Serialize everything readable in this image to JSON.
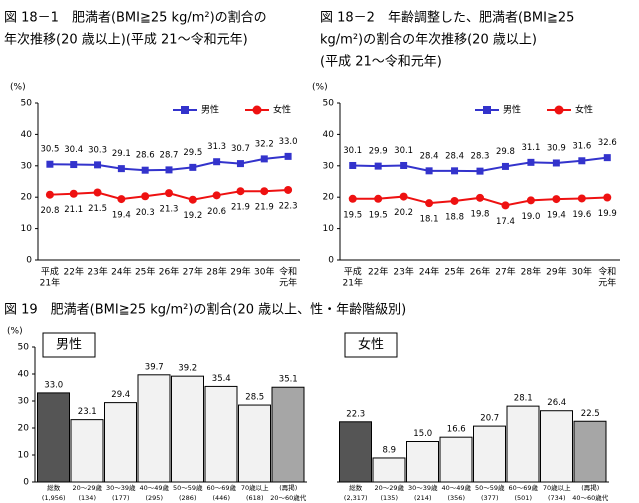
{
  "chart_data": [
    {
      "type": "line",
      "title": [
        "図 18－1　肥満者(BMI≧25 kg/m²)の割合の",
        "年次推移(20 歳以上)(平成 21～令和元年)"
      ],
      "y_label": "(%)",
      "categories": [
        [
          "平成",
          "21年"
        ],
        [
          "22年"
        ],
        [
          "23年"
        ],
        [
          "24年"
        ],
        [
          "25年"
        ],
        [
          "26年"
        ],
        [
          "27年"
        ],
        [
          "28年"
        ],
        [
          "29年"
        ],
        [
          "30年"
        ],
        [
          "令和",
          "元年"
        ]
      ],
      "series": [
        {
          "name": "男性",
          "color": "#3333cc",
          "marker": "square",
          "values": [
            30.5,
            30.4,
            30.3,
            29.1,
            28.6,
            28.7,
            29.5,
            31.3,
            30.7,
            32.2,
            33.0
          ],
          "value_labels": [
            "30.5",
            "30.4",
            "30.3",
            "29.1",
            "28.6",
            "28.7",
            "29.5",
            "31.3",
            "30.7",
            "32.2",
            "33.0"
          ]
        },
        {
          "name": "女性",
          "color": "#ee1111",
          "marker": "circle",
          "values": [
            20.8,
            21.1,
            21.5,
            19.4,
            20.3,
            21.3,
            19.2,
            20.6,
            21.9,
            21.9,
            22.3
          ]
        }
      ],
      "ylim": [
        0,
        50
      ],
      "yticks": [
        0,
        10,
        20,
        30,
        40,
        50
      ]
    },
    {
      "type": "line",
      "title": [
        "図 18－2　年齢調整した、肥満者(BMI≧25",
        "kg/m²)の割合の年次推移(20 歳以上)",
        "(平成 21～令和元年)"
      ],
      "y_label": "(%)",
      "categories": [
        [
          "平成",
          "21年"
        ],
        [
          "22年"
        ],
        [
          "23年"
        ],
        [
          "24年"
        ],
        [
          "25年"
        ],
        [
          "26年"
        ],
        [
          "27年"
        ],
        [
          "28年"
        ],
        [
          "29年"
        ],
        [
          "30年"
        ],
        [
          "令和",
          "元年"
        ]
      ],
      "series": [
        {
          "name": "男性",
          "color": "#3333cc",
          "marker": "square",
          "values": [
            30.1,
            29.9,
            30.1,
            28.4,
            28.4,
            28.3,
            29.8,
            31.1,
            30.9,
            31.6,
            32.6
          ]
        },
        {
          "name": "女性",
          "color": "#ee1111",
          "marker": "circle",
          "values": [
            19.5,
            19.5,
            20.2,
            18.1,
            18.8,
            19.8,
            17.4,
            19.0,
            19.4,
            19.6,
            19.9
          ],
          "value_labels": [
            "19.5",
            "19.5",
            "20.2",
            "18.1",
            "18.8",
            "19.8",
            "17.4",
            "19.0",
            "19.4",
            "19.6",
            "19.9"
          ]
        }
      ],
      "ylim": [
        0,
        50
      ],
      "yticks": [
        0,
        10,
        20,
        30,
        40,
        50
      ]
    },
    {
      "type": "bar",
      "title": [
        "図 19　肥満者(BMI≧25 kg/m²)の割合(20 歳以上、性・年齢階級別)"
      ],
      "y_label": "(%)",
      "ylim": [
        0,
        50
      ],
      "yticks": [
        0,
        10,
        20,
        30,
        40,
        50
      ],
      "panels": [
        {
          "label": "男性",
          "categories": [
            [
              "総数",
              "(1,956)"
            ],
            [
              "20～29歳",
              "(134)"
            ],
            [
              "30～39歳",
              "(177)"
            ],
            [
              "40～49歳",
              "(295)"
            ],
            [
              "50～59歳",
              "(286)"
            ],
            [
              "60～69歳",
              "(446)"
            ],
            [
              "70歳以上",
              "(618)"
            ],
            [
              "(再掲)",
              "20～60歳代"
            ]
          ],
          "values": [
            33.0,
            23.1,
            29.4,
            39.7,
            39.2,
            35.4,
            28.5,
            35.1
          ],
          "value_labels": [
            "33.0",
            "23.1",
            "29.4",
            "39.7",
            "39.2",
            "35.4",
            "28.5",
            "35.1"
          ],
          "colors": [
            "#555555",
            "#f2f2f2",
            "#f2f2f2",
            "#f2f2f2",
            "#f2f2f2",
            "#f2f2f2",
            "#f2f2f2",
            "#a6a6a6"
          ]
        },
        {
          "label": "女性",
          "categories": [
            [
              "総数",
              "(2,317)"
            ],
            [
              "20～29歳",
              "(135)"
            ],
            [
              "30～39歳",
              "(214)"
            ],
            [
              "40～49歳",
              "(356)"
            ],
            [
              "50～59歳",
              "(377)"
            ],
            [
              "60～69歳",
              "(501)"
            ],
            [
              "70歳以上",
              "(734)"
            ],
            [
              "(再掲)",
              "40～60歳代"
            ]
          ],
          "values": [
            22.3,
            8.9,
            15.0,
            16.6,
            20.7,
            28.1,
            26.4,
            22.5
          ],
          "value_labels": [
            "22.3",
            "8.9",
            "15.0",
            "16.6",
            "20.7",
            "28.1",
            "26.4",
            "22.5"
          ],
          "colors": [
            "#555555",
            "#f2f2f2",
            "#f2f2f2",
            "#f2f2f2",
            "#f2f2f2",
            "#f2f2f2",
            "#f2f2f2",
            "#a6a6a6"
          ]
        }
      ]
    }
  ]
}
